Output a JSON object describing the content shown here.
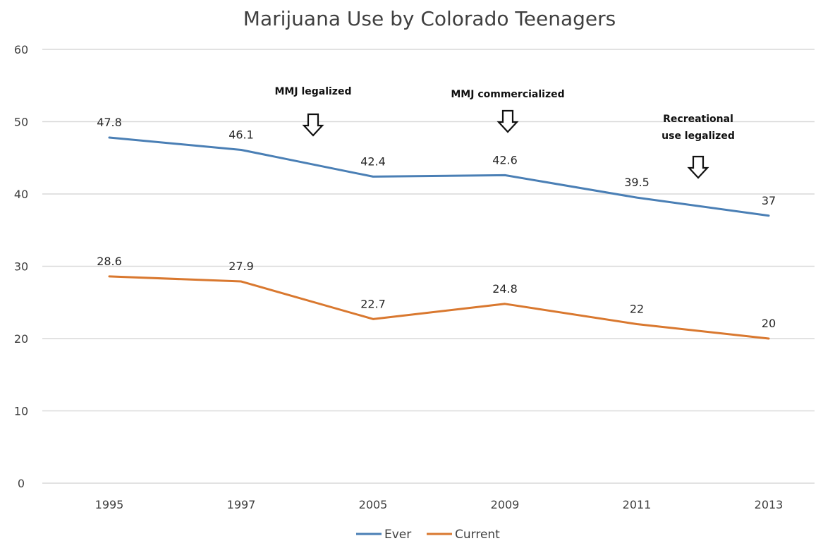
{
  "chart_data": {
    "type": "line",
    "title": "Marijuana Use by Colorado Teenagers",
    "categories": [
      "1995",
      "1997",
      "2005",
      "2009",
      "2011",
      "2013"
    ],
    "y_ticks": [
      "0",
      "10",
      "20",
      "30",
      "40",
      "50",
      "60"
    ],
    "ylim": [
      0,
      60
    ],
    "grid": true,
    "legend_position": "bottom",
    "series": [
      {
        "name": "Ever",
        "color": "#4a7fb5",
        "values": [
          47.8,
          46.1,
          42.4,
          42.6,
          39.5,
          37
        ],
        "labels": [
          "47.8",
          "46.1",
          "42.4",
          "42.6",
          "39.5",
          "37"
        ]
      },
      {
        "name": "Current",
        "color": "#d9782f",
        "values": [
          28.6,
          27.9,
          22.7,
          24.8,
          22,
          20
        ],
        "labels": [
          "28.6",
          "27.9",
          "22.7",
          "24.8",
          "22",
          "20"
        ]
      }
    ],
    "annotations": [
      {
        "lines": [
          "MMJ legalized"
        ],
        "x_between": [
          "1997",
          "2005"
        ]
      },
      {
        "lines": [
          "MMJ commercialized"
        ],
        "x_at": "2009"
      },
      {
        "lines": [
          "Recreational",
          "use legalized"
        ],
        "x_between": [
          "2011",
          "2013"
        ]
      }
    ]
  }
}
